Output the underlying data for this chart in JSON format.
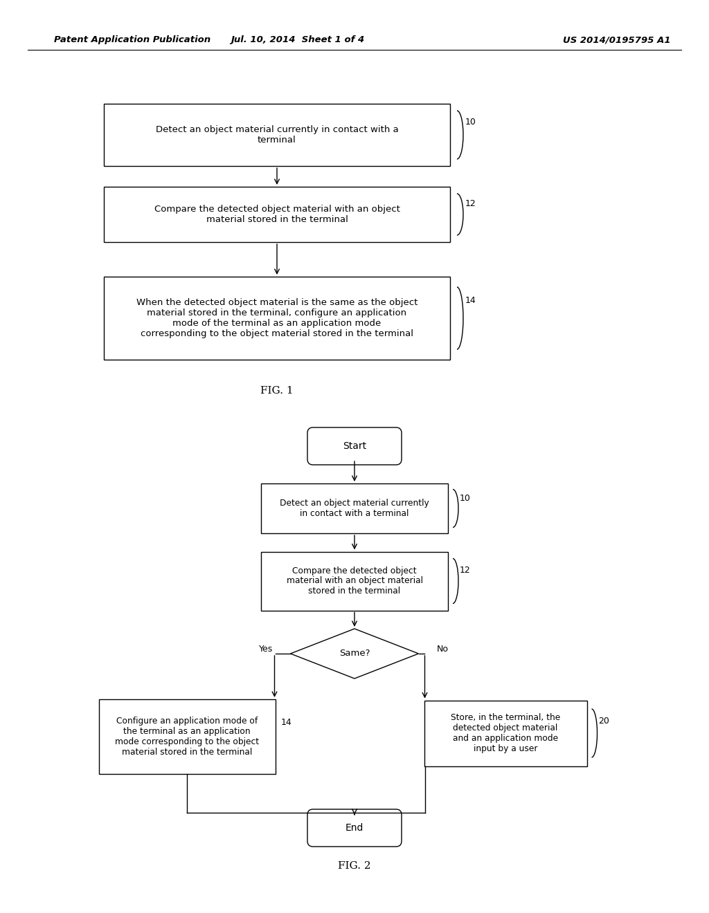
{
  "bg_color": "#ffffff",
  "header_left": "Patent Application Publication",
  "header_mid": "Jul. 10, 2014  Sheet 1 of 4",
  "header_right": "US 2014/0195795 A1",
  "fig1_label": "FIG. 1",
  "fig2_label": "FIG. 2",
  "line_color": "#000000",
  "text_color": "#000000",
  "header_fontsize": 9.5,
  "body_fontsize": 9.5,
  "small_fontsize": 8.8,
  "ref_fontsize": 9.0,
  "fig_label_fontsize": 11
}
